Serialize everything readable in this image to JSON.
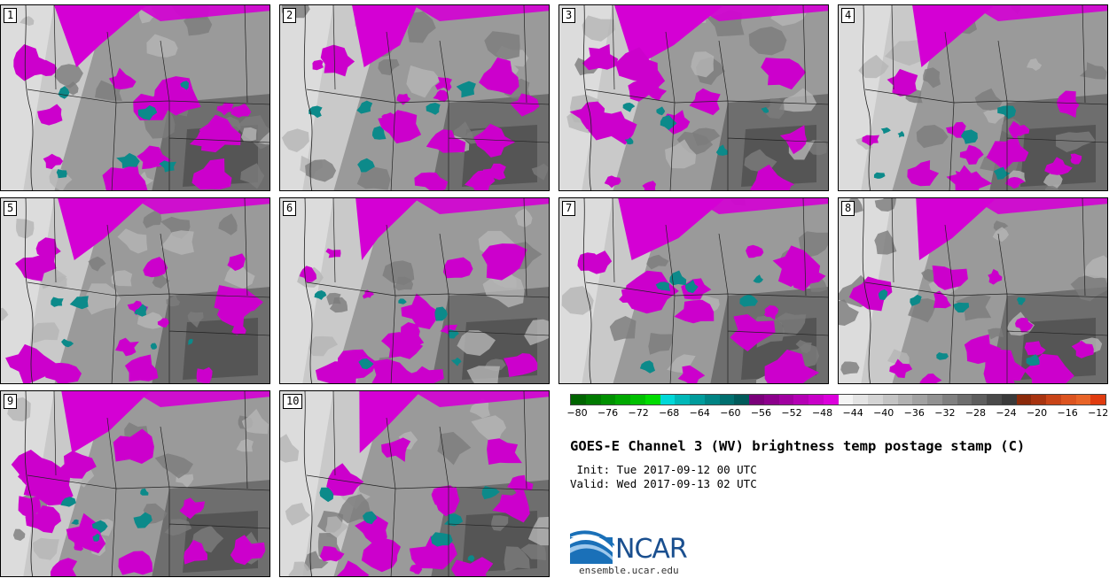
{
  "panels": [
    {
      "label": "1"
    },
    {
      "label": "2"
    },
    {
      "label": "3"
    },
    {
      "label": "4"
    },
    {
      "label": "5"
    },
    {
      "label": "6"
    },
    {
      "label": "7"
    },
    {
      "label": "8"
    },
    {
      "label": "9"
    },
    {
      "label": "10"
    }
  ],
  "colorbar": {
    "colors": [
      "#006400",
      "#007a00",
      "#009000",
      "#00a800",
      "#00c000",
      "#00dc00",
      "#00d8d8",
      "#00b8b8",
      "#009c9c",
      "#008484",
      "#006f6f",
      "#005a5a",
      "#7a007a",
      "#8c008c",
      "#a000a0",
      "#b400b4",
      "#c800c8",
      "#dc00dc",
      "#f4f4f4",
      "#e4e4e4",
      "#d4d4d4",
      "#c4c4c4",
      "#b2b2b2",
      "#a2a2a2",
      "#929292",
      "#808080",
      "#6e6e6e",
      "#5e5e5e",
      "#4a4a4a",
      "#3a3a3a",
      "#8b2a0a",
      "#a83410",
      "#c84418",
      "#dc5420",
      "#e86428",
      "#e03c10"
    ],
    "tick_labels": [
      "−80",
      "−76",
      "−72",
      "−68",
      "−64",
      "−60",
      "−56",
      "−52",
      "−48",
      "−44",
      "−40",
      "−36",
      "−32",
      "−28",
      "−24",
      "−20",
      "−16",
      "−12"
    ]
  },
  "title": "GOES-E Channel 3 (WV) brightness temp postage stamp (C)",
  "init": " Init: Tue 2017-09-12 00 UTC",
  "valid": "Valid: Wed 2017-09-13 02 UTC",
  "logo": {
    "text": "NCAR",
    "url": "ensemble.ucar.edu"
  }
}
